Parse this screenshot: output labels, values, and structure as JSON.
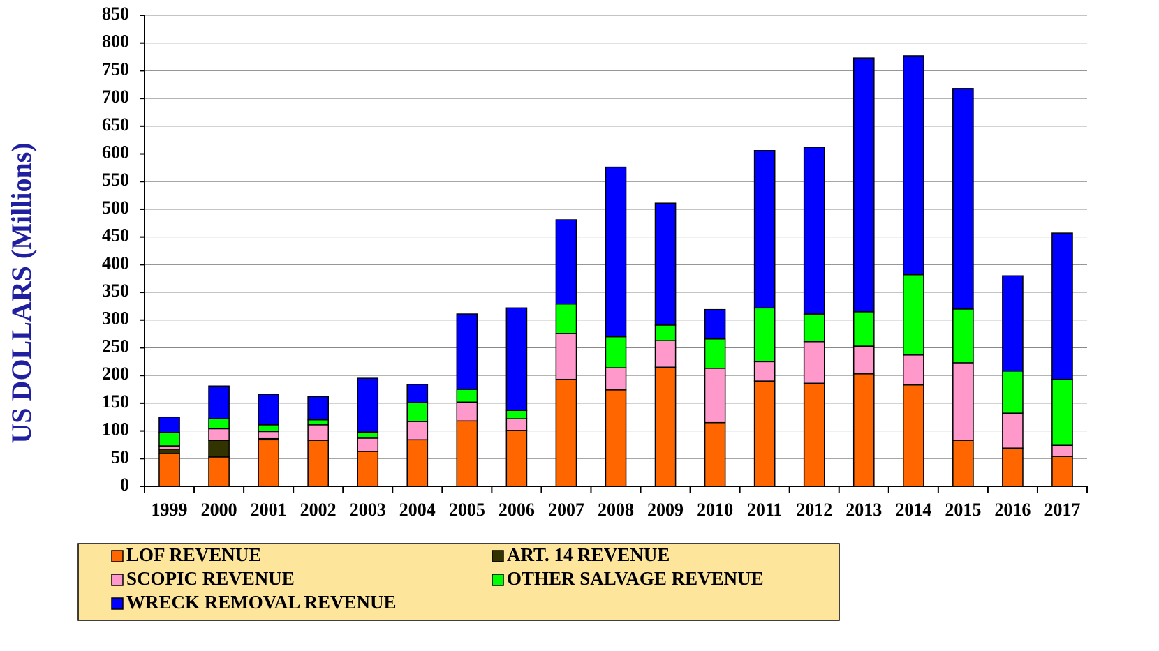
{
  "chart_data": {
    "type": "stacked_bar",
    "y_label": "US DOLLARS (Millions)",
    "categories": [
      "1999",
      "2000",
      "2001",
      "2002",
      "2003",
      "2004",
      "2005",
      "2006",
      "2007",
      "2008",
      "2009",
      "2010",
      "2011",
      "2012",
      "2013",
      "2014",
      "2015",
      "2016",
      "2017"
    ],
    "series": [
      {
        "name": "LOF REVENUE",
        "color": "#ff6600",
        "values": [
          59,
          53,
          84,
          83,
          63,
          84,
          118,
          101,
          193,
          174,
          215,
          115,
          190,
          186,
          203,
          183,
          83,
          69,
          54
        ]
      },
      {
        "name": "ART. 14 REVENUE",
        "color": "#333300",
        "values": [
          8,
          30,
          2,
          0,
          0,
          0,
          0,
          0,
          0,
          0,
          0,
          0,
          0,
          0,
          0,
          0,
          0,
          0,
          0
        ]
      },
      {
        "name": "SCOPIC REVENUE",
        "color": "#ff99cc",
        "values": [
          6,
          21,
          13,
          28,
          24,
          33,
          34,
          21,
          83,
          40,
          48,
          98,
          35,
          75,
          50,
          54,
          140,
          63,
          20
        ]
      },
      {
        "name": "OTHER SALVAGE REVENUE",
        "color": "#00ff00",
        "values": [
          24,
          18,
          12,
          9,
          11,
          34,
          23,
          15,
          53,
          56,
          28,
          53,
          97,
          50,
          62,
          145,
          97,
          76,
          119
        ]
      },
      {
        "name": "WRECK REMOVAL REVENUE",
        "color": "#0000ff",
        "values": [
          28,
          59,
          55,
          42,
          97,
          33,
          136,
          185,
          152,
          306,
          220,
          53,
          284,
          301,
          458,
          395,
          398,
          172,
          264
        ]
      }
    ],
    "ylim": [
      0,
      850
    ],
    "yticks": [
      0,
      50,
      100,
      150,
      200,
      250,
      300,
      350,
      400,
      450,
      500,
      550,
      600,
      650,
      700,
      750,
      800,
      850
    ],
    "grid": true,
    "legend_position": "bottom"
  }
}
